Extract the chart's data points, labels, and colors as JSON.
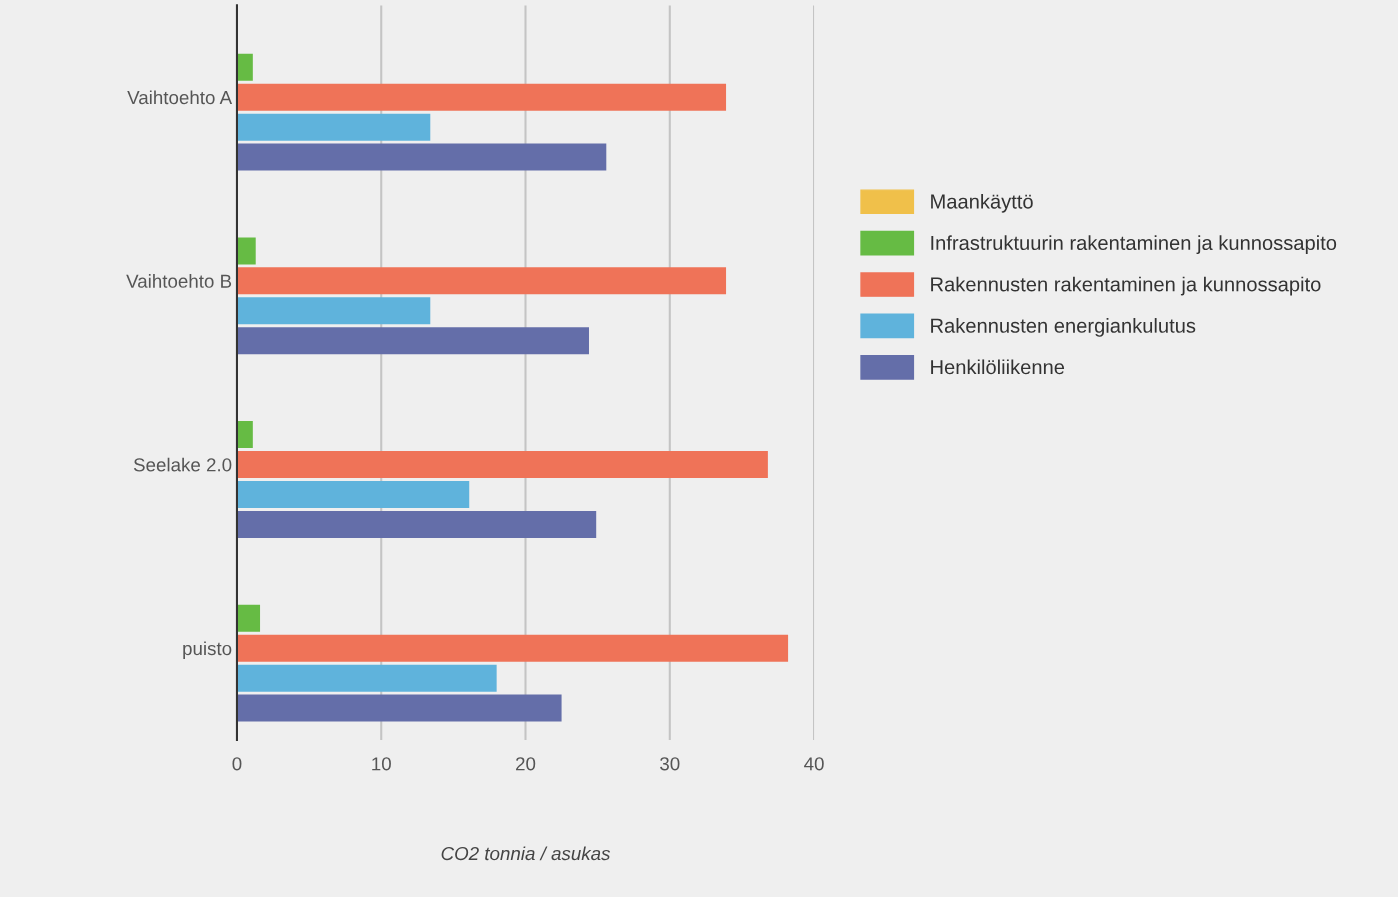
{
  "chart_data": {
    "type": "bar",
    "orientation": "horizontal",
    "xlabel": "CO2 tonnia / asukas",
    "categories": [
      "Vaihtoehto A",
      "Vaihtoehto B",
      "Seelake 2.0",
      "puisto"
    ],
    "series": [
      {
        "name": "Maankäyttö",
        "color": "#f0c04a",
        "values": [
          null,
          null,
          null,
          null
        ]
      },
      {
        "name": "Infrastruktuurin rakentaminen ja kunnossapito",
        "color": "#66bb44",
        "values": [
          1.1,
          1.3,
          1.1,
          1.6
        ]
      },
      {
        "name": "Rakennusten rakentaminen ja kunnossapito",
        "color": "#ef7358",
        "values": [
          33.9,
          33.9,
          36.8,
          38.2
        ]
      },
      {
        "name": "Rakennusten energiankulutus",
        "color": "#5fb3dc",
        "values": [
          13.4,
          13.4,
          16.1,
          18.0
        ]
      },
      {
        "name": "Henkilöliikenne",
        "color": "#646ea9",
        "values": [
          25.6,
          24.4,
          24.9,
          22.5
        ]
      }
    ],
    "xlim": [
      0,
      40
    ],
    "xticks": [
      0,
      10,
      20,
      30,
      40
    ],
    "grid": "x",
    "legend": "right"
  }
}
